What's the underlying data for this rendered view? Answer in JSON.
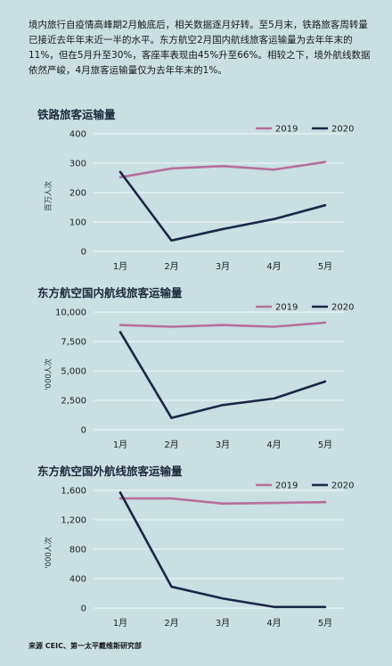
{
  "intro_text": "境内旅行自疫情高峰期2月触底后，相关数据逐月好转。至5月末，铁路旅客周转量已接近去年年末近一半的水平。东方航空2月国内航线旅客运输量为去年年末的11%，但在5月升至30%，客座率表现由45%升至66%。相较之下，境外航线数据依然严峻，4月旅客运输量仅为去年年末的1%。",
  "source_text": "来源 CEIC、第一太平戴维斯研究部",
  "colors": {
    "s2019": "#b5709b",
    "s2020": "#1a2744",
    "grid": "#f3f7f8"
  },
  "chart_data": [
    {
      "type": "line",
      "title": "铁路旅客运输量",
      "ylabel": "百万人次",
      "categories": [
        "1月",
        "2月",
        "3月",
        "4月",
        "5月"
      ],
      "ylim": [
        0,
        400
      ],
      "yticks": [
        0,
        100,
        200,
        300,
        400
      ],
      "ytick_labels": [
        "0",
        "100",
        "200",
        "300",
        "400"
      ],
      "grid": true,
      "legend": "top-right",
      "series": [
        {
          "name": "2019",
          "values": [
            252,
            282,
            290,
            278,
            304
          ]
        },
        {
          "name": "2020",
          "values": [
            270,
            37,
            76,
            110,
            157
          ]
        }
      ]
    },
    {
      "type": "line",
      "title": "东方航空国内航线旅客运输量",
      "ylabel": "'000人次",
      "categories": [
        "1月",
        "2月",
        "3月",
        "4月",
        "5月"
      ],
      "ylim": [
        0,
        10000
      ],
      "yticks": [
        0,
        2500,
        5000,
        7500,
        10000
      ],
      "ytick_labels": [
        "0",
        "2,500",
        "5,000",
        "7,500",
        "10,000"
      ],
      "grid": true,
      "legend": "top-right",
      "series": [
        {
          "name": "2019",
          "values": [
            8900,
            8750,
            8900,
            8750,
            9100
          ]
        },
        {
          "name": "2020",
          "values": [
            8300,
            1000,
            2100,
            2650,
            4100
          ]
        }
      ]
    },
    {
      "type": "line",
      "title": "东方航空国外航线旅客运输量",
      "ylabel": "'000人次",
      "categories": [
        "1月",
        "2月",
        "3月",
        "4月",
        "5月"
      ],
      "ylim": [
        0,
        1600
      ],
      "yticks": [
        0,
        400,
        800,
        1200,
        1600
      ],
      "ytick_labels": [
        "0",
        "400",
        "800",
        "1,200",
        "1,600"
      ],
      "grid": true,
      "legend": "top-right",
      "series": [
        {
          "name": "2019",
          "values": [
            1490,
            1490,
            1420,
            1430,
            1440
          ]
        },
        {
          "name": "2020",
          "values": [
            1570,
            290,
            130,
            15,
            15
          ]
        }
      ]
    }
  ]
}
